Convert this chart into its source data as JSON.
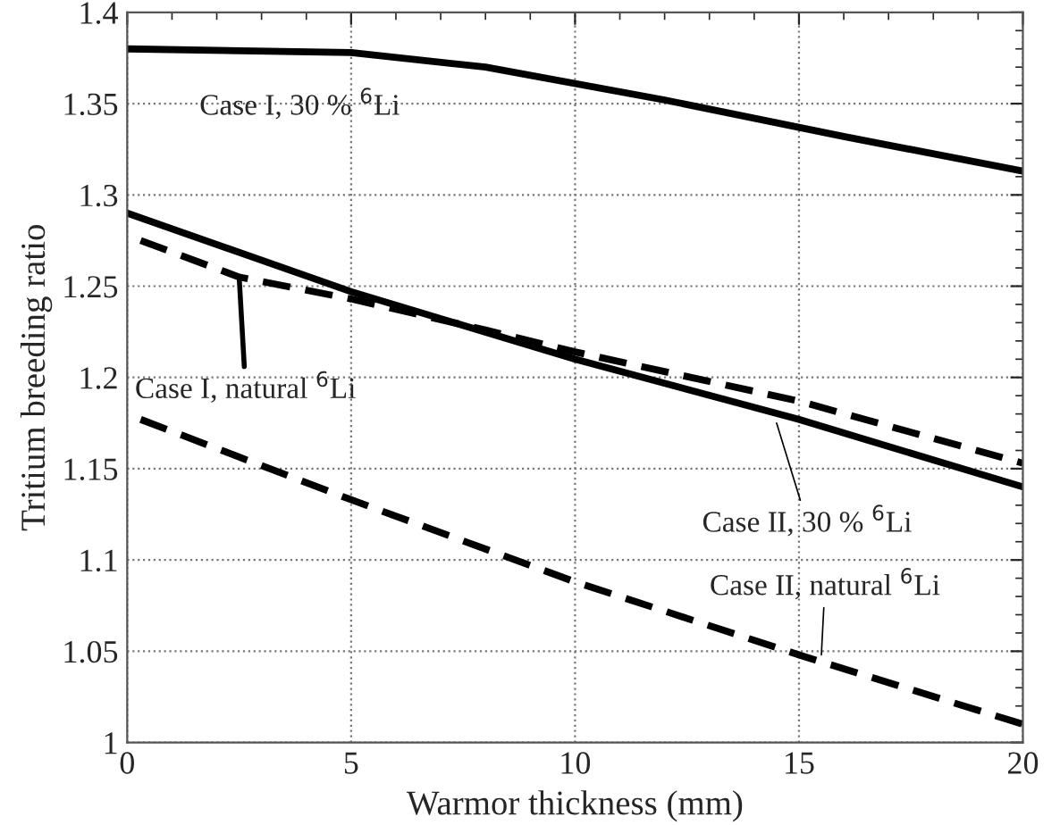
{
  "chart_data": {
    "type": "line",
    "xlabel": "Warmor thickness (mm)",
    "ylabel": "Tritium breeding ratio",
    "xlim": [
      0,
      20
    ],
    "xticks": [
      0,
      5,
      10,
      15,
      20
    ],
    "ylim": [
      1,
      1.4
    ],
    "yticks": [
      1,
      1.05,
      1.1,
      1.15,
      1.2,
      1.25,
      1.3,
      1.35,
      1.4
    ],
    "grid": true,
    "legend": false,
    "series": [
      {
        "color": "#000000",
        "line_style": "solid",
        "x": [
          0,
          5,
          8,
          12,
          16,
          20
        ],
        "values": [
          1.38,
          1.378,
          1.37,
          1.352,
          1.332,
          1.313
        ]
      },
      {
        "color": "#000000",
        "line_style": "solid",
        "x": [
          0,
          5,
          10,
          15,
          20
        ],
        "values": [
          1.29,
          1.247,
          1.21,
          1.177,
          1.14
        ]
      },
      {
        "color": "#000000",
        "line_style": "dashed",
        "x": [
          0.3,
          2.5,
          5,
          8,
          10,
          15,
          20
        ],
        "values": [
          1.275,
          1.255,
          1.243,
          1.226,
          1.214,
          1.187,
          1.153
        ]
      },
      {
        "color": "#000000",
        "line_style": "dashed",
        "x": [
          0.3,
          5,
          10,
          15,
          20
        ],
        "values": [
          1.177,
          1.133,
          1.088,
          1.048,
          1.01
        ]
      }
    ],
    "annotations": [
      {
        "text": "Case I, 30 % $^{6}$Li",
        "x": 3,
        "y": 1.379
      },
      {
        "text": "Case I, natural $^{6}$Li",
        "x": 2.5,
        "y": 1.255
      },
      {
        "text": "Case II, 30 % $^{6}$Li",
        "x": 14.5,
        "y": 1.175
      },
      {
        "text": "Case II, natural $^{6}$Li",
        "x": 15.5,
        "y": 1.048
      }
    ]
  }
}
